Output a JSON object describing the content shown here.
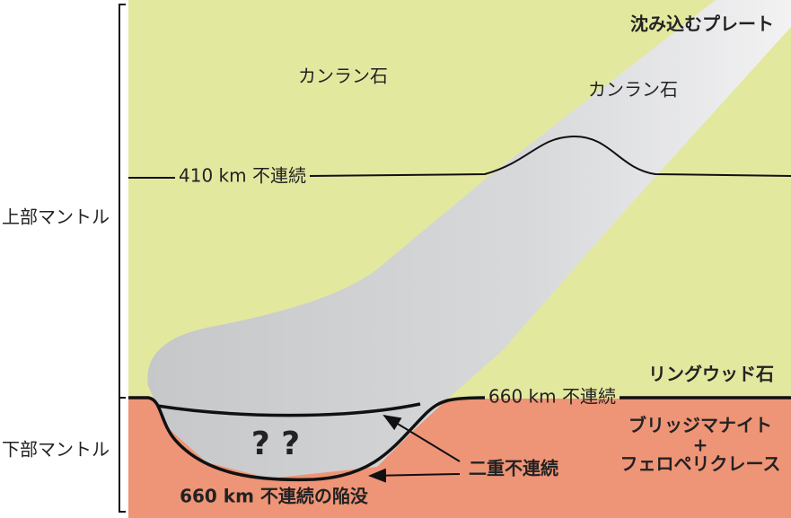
{
  "layers": {
    "upper": "上部マントル",
    "lower": "下部マントル"
  },
  "labels": {
    "slab": "沈み込むプレート",
    "olivine_mantle": "カンラン石",
    "olivine_slab": "カンラン石",
    "d410": "410 km 不連続",
    "ringwoodite": "リングウッド石",
    "d660": "660 km 不連続",
    "lower_phase": [
      "ブリッジマナイト",
      "+",
      "フェロペリクレース"
    ],
    "question": "? ?",
    "double": "二重不連続",
    "depression": "660 km 不連続の陥没"
  }
}
